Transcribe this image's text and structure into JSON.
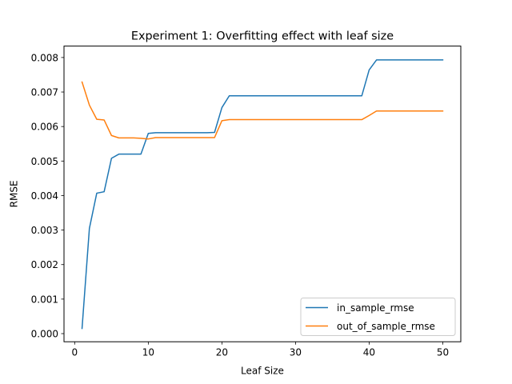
{
  "chart_data": {
    "type": "line",
    "title": "Experiment 1: Overfitting effect with leaf size",
    "xlabel": "Leaf Size",
    "ylabel": "RMSE",
    "xlim": [
      -1.45,
      52.45
    ],
    "ylim": [
      -0.000236,
      0.008331
    ],
    "xticks": [
      0,
      10,
      20,
      30,
      40,
      50
    ],
    "xtick_labels": [
      "0",
      "10",
      "20",
      "30",
      "40",
      "50"
    ],
    "yticks": [
      0.0,
      0.001,
      0.002,
      0.003,
      0.004,
      0.005,
      0.006,
      0.007,
      0.008
    ],
    "ytick_labels": [
      "0.000",
      "0.001",
      "0.002",
      "0.003",
      "0.004",
      "0.005",
      "0.006",
      "0.007",
      "0.008"
    ],
    "grid": false,
    "legend_position": "lower-right",
    "x": [
      1,
      2,
      3,
      4,
      5,
      6,
      7,
      8,
      9,
      10,
      11,
      12,
      13,
      14,
      15,
      16,
      17,
      18,
      19,
      20,
      21,
      22,
      23,
      24,
      25,
      26,
      27,
      28,
      29,
      30,
      31,
      32,
      33,
      34,
      35,
      36,
      37,
      38,
      39,
      40,
      41,
      42,
      43,
      44,
      45,
      46,
      47,
      48,
      49,
      50
    ],
    "series": [
      {
        "name": "in_sample_rmse",
        "color": "#1f77b4",
        "values": [
          0.00015,
          0.00305,
          0.00407,
          0.00411,
          0.00508,
          0.0052,
          0.0052,
          0.0052,
          0.0052,
          0.0058,
          0.00582,
          0.00582,
          0.00582,
          0.00582,
          0.00582,
          0.00582,
          0.00582,
          0.00582,
          0.00583,
          0.00655,
          0.00689,
          0.00689,
          0.00689,
          0.00689,
          0.00689,
          0.00689,
          0.00689,
          0.00689,
          0.00689,
          0.00689,
          0.00689,
          0.00689,
          0.00689,
          0.00689,
          0.00689,
          0.00689,
          0.00689,
          0.00689,
          0.00689,
          0.00764,
          0.00793,
          0.00793,
          0.00793,
          0.00793,
          0.00793,
          0.00793,
          0.00793,
          0.00793,
          0.00793,
          0.00793
        ]
      },
      {
        "name": "out_of_sample_rmse",
        "color": "#ff7f0e",
        "values": [
          0.00729,
          0.00662,
          0.00621,
          0.00619,
          0.00574,
          0.00567,
          0.00567,
          0.00567,
          0.00566,
          0.00564,
          0.00568,
          0.00568,
          0.00568,
          0.00568,
          0.00568,
          0.00568,
          0.00568,
          0.00568,
          0.00568,
          0.00617,
          0.0062,
          0.0062,
          0.0062,
          0.0062,
          0.0062,
          0.0062,
          0.0062,
          0.0062,
          0.0062,
          0.0062,
          0.0062,
          0.0062,
          0.0062,
          0.0062,
          0.0062,
          0.0062,
          0.0062,
          0.0062,
          0.0062,
          0.00632,
          0.00645,
          0.00645,
          0.00645,
          0.00645,
          0.00645,
          0.00645,
          0.00645,
          0.00645,
          0.00645,
          0.00645
        ]
      }
    ]
  }
}
